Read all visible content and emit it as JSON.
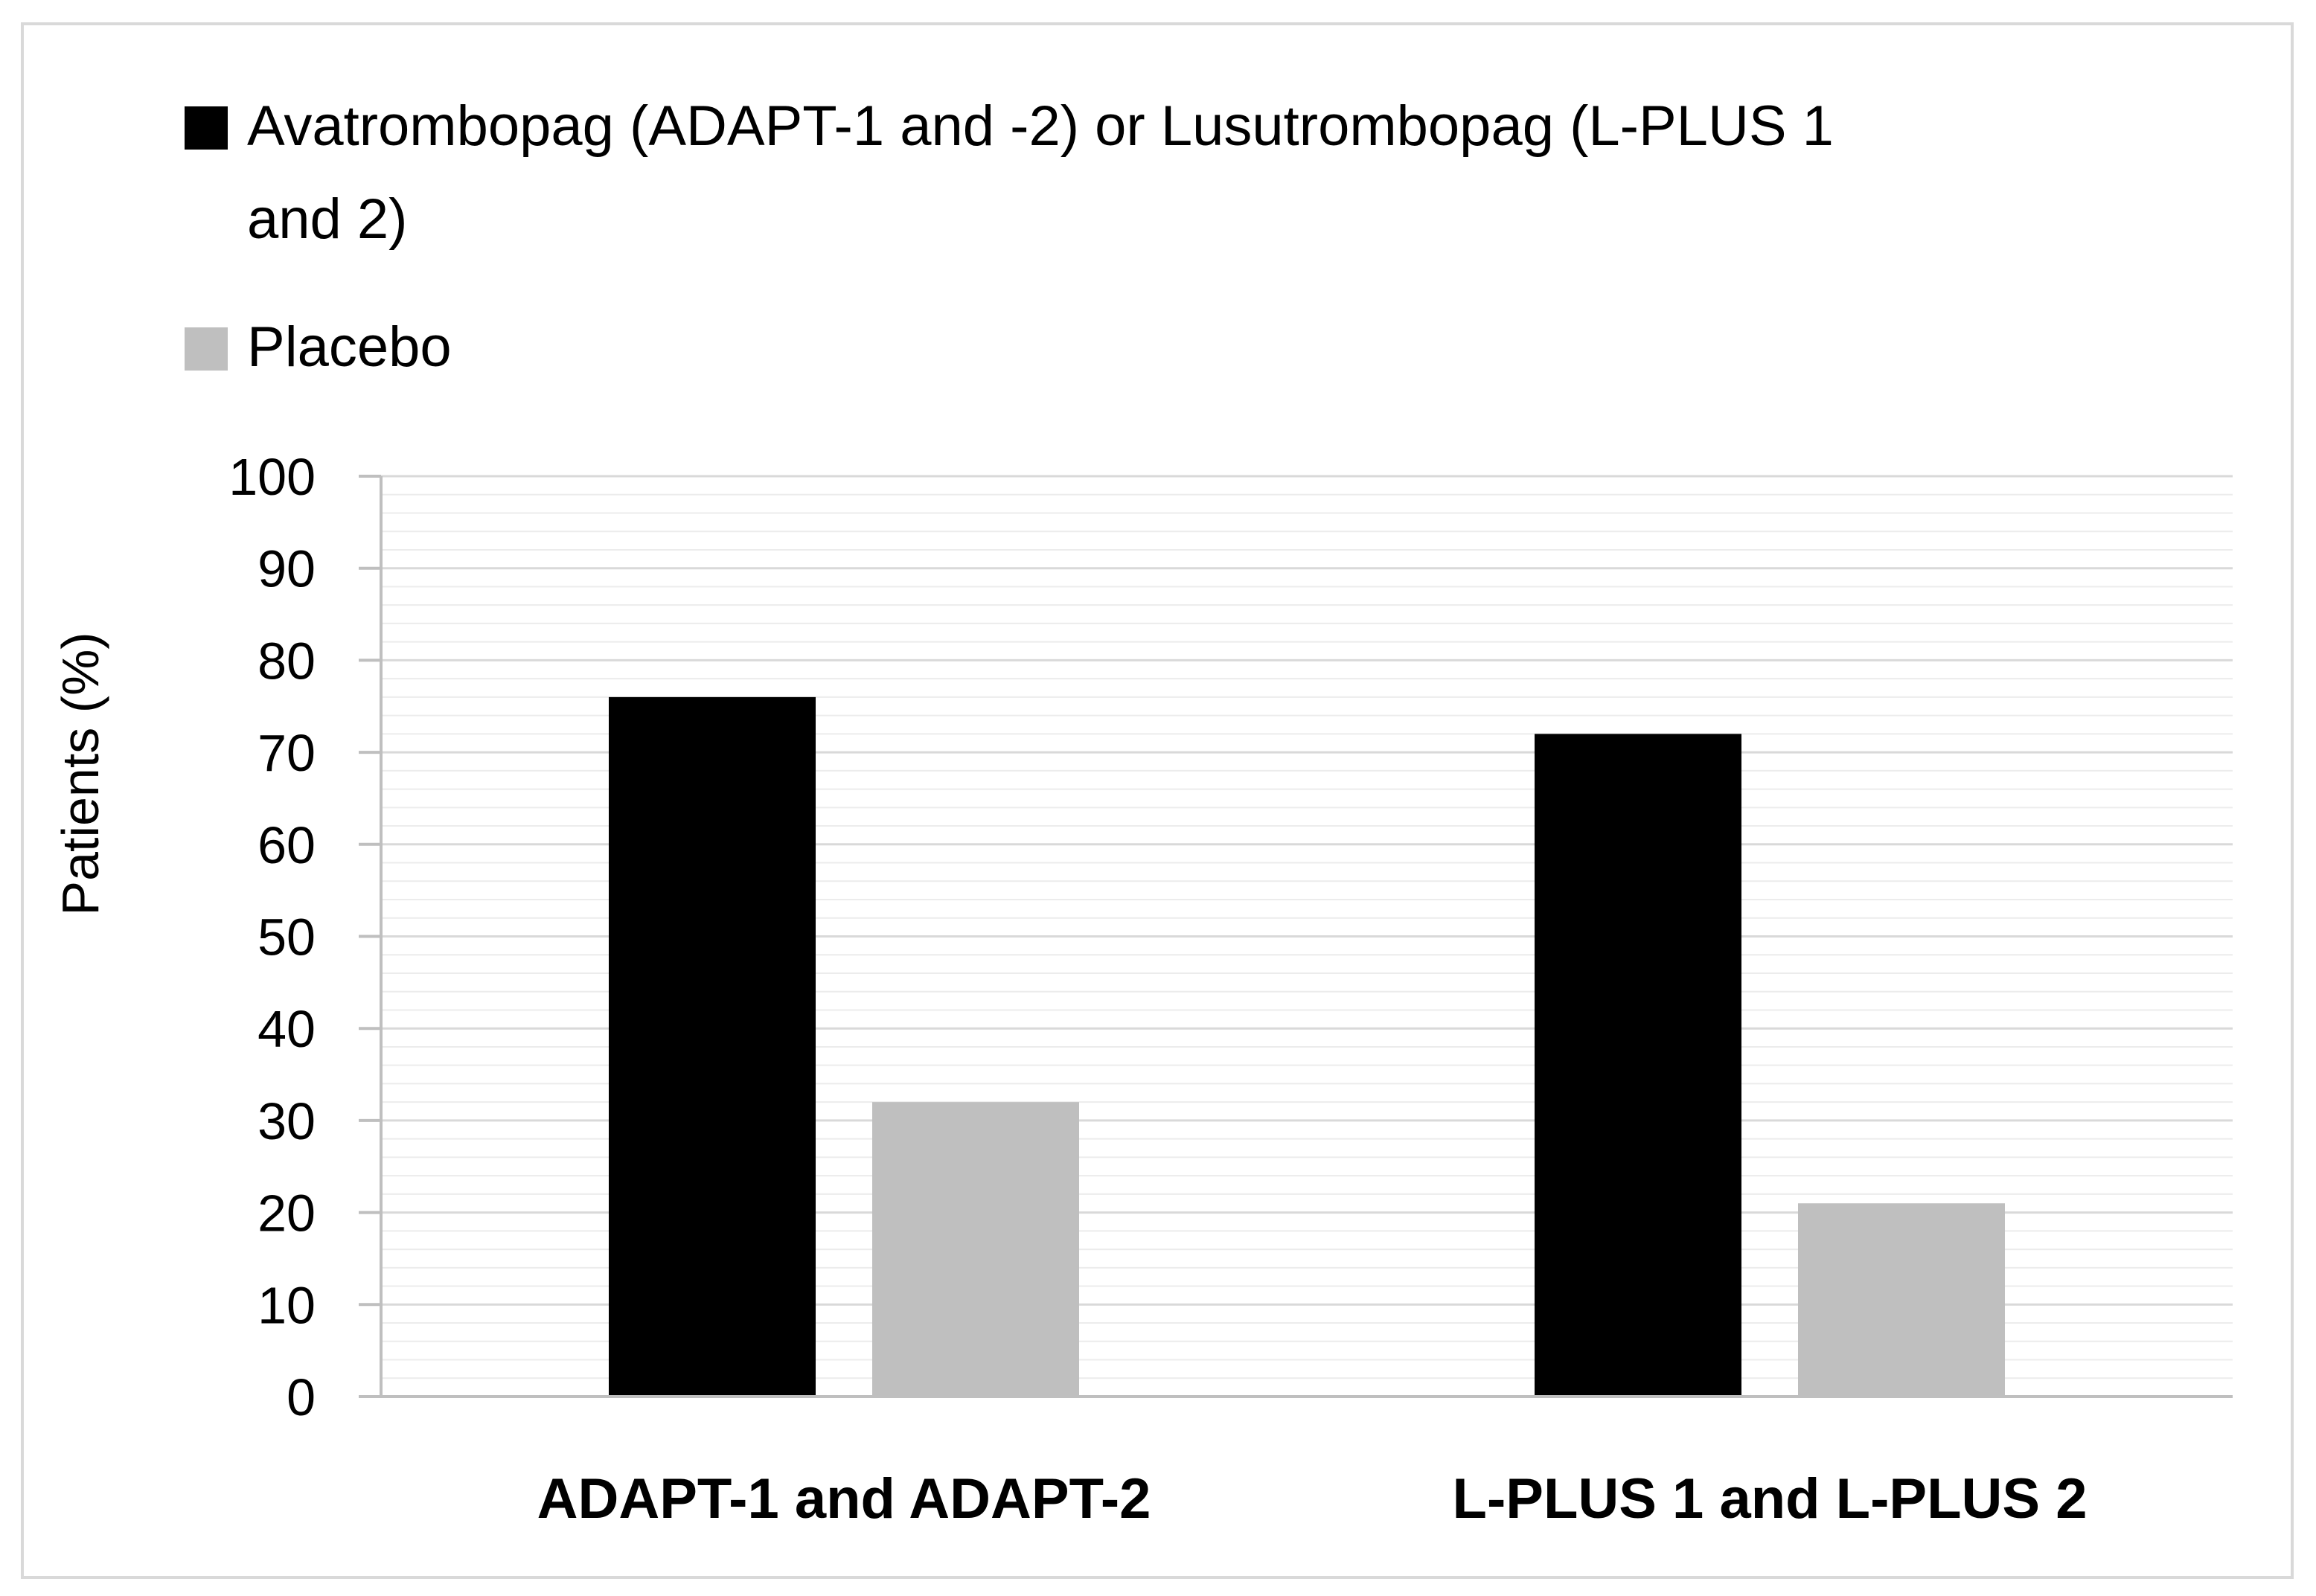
{
  "chart_data": {
    "type": "bar",
    "title": "",
    "xlabel": "",
    "ylabel": "Patients (%)",
    "ylim": [
      0,
      100
    ],
    "yticks": [
      "0",
      "10",
      "20",
      "30",
      "40",
      "50",
      "60",
      "70",
      "80",
      "90",
      "100"
    ],
    "categories": [
      "ADAPT-1 and ADAPT-2",
      "L-PLUS 1 and L-PLUS 2"
    ],
    "series": [
      {
        "name": "Avatrombopag (ADAPT-1 and -2) or Lusutrombopag (L-PLUS 1 and 2)",
        "legend_lines": [
          "Avatrombopag (ADAPT-1 and -2) or Lusutrombopag (L-PLUS 1",
          "and 2)"
        ],
        "color": "#000000",
        "values": [
          76,
          72
        ]
      },
      {
        "name": "Placebo",
        "legend_lines": [
          "Placebo"
        ],
        "color": "#bfbfbf",
        "values": [
          32,
          21
        ]
      }
    ],
    "grid": true,
    "minor_grid": true,
    "legend_position": "top-left"
  }
}
